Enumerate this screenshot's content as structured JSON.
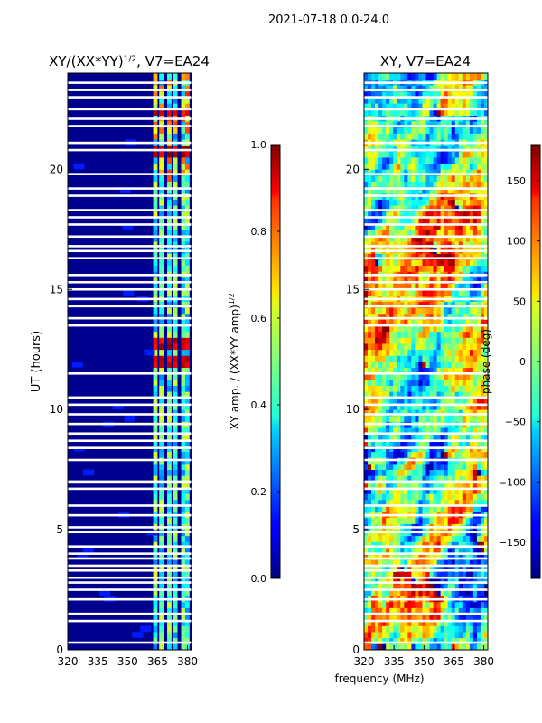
{
  "header": {
    "title": "2021-07-18 0.0-24.0"
  },
  "chart_data": [
    {
      "type": "heatmap",
      "title": "XY/(XX*YY)1/2, V7=EA24",
      "title_base": "XY/(XX*YY)",
      "title_sup": "1/2",
      "title_rest": ", V7=EA24",
      "ylabel": "UT (hours)",
      "xlabel": "",
      "xlim": [
        320,
        382
      ],
      "ylim": [
        0,
        24
      ],
      "xticks": [
        "320",
        "335",
        "350",
        "365",
        "380"
      ],
      "yticks": [
        "0",
        "5",
        "10",
        "15",
        "20"
      ],
      "colorbar": {
        "label": "XY amp. / (XX*YY amp)1/2",
        "label_base": "XY amp. / (XX*YY amp)",
        "label_sup": "1/2",
        "ticks": [
          "0.0",
          "0.2",
          "0.4",
          "0.6",
          "0.8",
          "1.0"
        ],
        "range": [
          0,
          1
        ],
        "colormap": "jet"
      },
      "active_channels_mhz": [
        364,
        367,
        371,
        374,
        378,
        380
      ],
      "peak_bands_ut": [
        [
          11.8,
          12.2
        ],
        [
          12.6,
          13.1
        ],
        [
          20.6,
          21.0
        ],
        [
          22.2,
          22.6
        ]
      ],
      "blank_rows_ut": [
        0.3,
        1.2,
        1.5,
        2.1,
        2.5,
        2.8,
        3.0,
        3.3,
        3.5,
        3.8,
        4.0,
        4.3,
        4.9,
        5.1,
        5.6,
        6.0,
        6.7,
        7.0,
        7.9,
        8.4,
        8.7,
        9.0,
        9.4,
        9.8,
        10.2,
        10.5,
        11.5,
        13.5,
        13.8,
        14.3,
        14.6,
        15.0,
        15.3,
        15.6,
        16.3,
        16.6,
        16.8,
        17.2,
        17.7,
        18.0,
        18.3,
        18.9,
        19.2,
        19.8,
        20.8,
        21.1,
        21.8,
        22.1,
        22.5,
        23.0,
        23.3,
        23.6
      ]
    },
    {
      "type": "heatmap",
      "title": "XY, V7=EA24",
      "ylabel": "",
      "xlabel": "frequency (MHz)",
      "xlim": [
        320,
        382
      ],
      "ylim": [
        0,
        24
      ],
      "xticks": [
        "320",
        "335",
        "350",
        "365",
        "380"
      ],
      "yticks": [
        "0",
        "5",
        "10",
        "15",
        "20"
      ],
      "colorbar": {
        "label": "phase (deg)",
        "ticks": [
          "-150",
          "-100",
          "-50",
          "0",
          "50",
          "100",
          "150"
        ],
        "tick_values": [
          -150,
          -100,
          -50,
          0,
          50,
          100,
          150
        ],
        "range": [
          -180,
          180
        ],
        "colormap": "jet"
      },
      "blank_rows_ut": [
        0.3,
        1.2,
        1.5,
        2.1,
        2.5,
        2.8,
        3.0,
        3.3,
        3.5,
        3.8,
        4.0,
        4.3,
        4.9,
        5.1,
        5.6,
        6.0,
        6.7,
        7.0,
        7.9,
        8.4,
        8.7,
        9.0,
        9.4,
        9.8,
        10.2,
        10.5,
        11.5,
        13.5,
        13.8,
        14.3,
        14.6,
        15.0,
        15.3,
        15.6,
        16.3,
        16.6,
        16.8,
        17.2,
        17.7,
        18.0,
        18.3,
        18.9,
        19.2,
        19.8,
        20.8,
        21.1,
        21.8,
        22.1,
        22.5,
        23.0,
        23.3,
        23.6
      ]
    }
  ]
}
